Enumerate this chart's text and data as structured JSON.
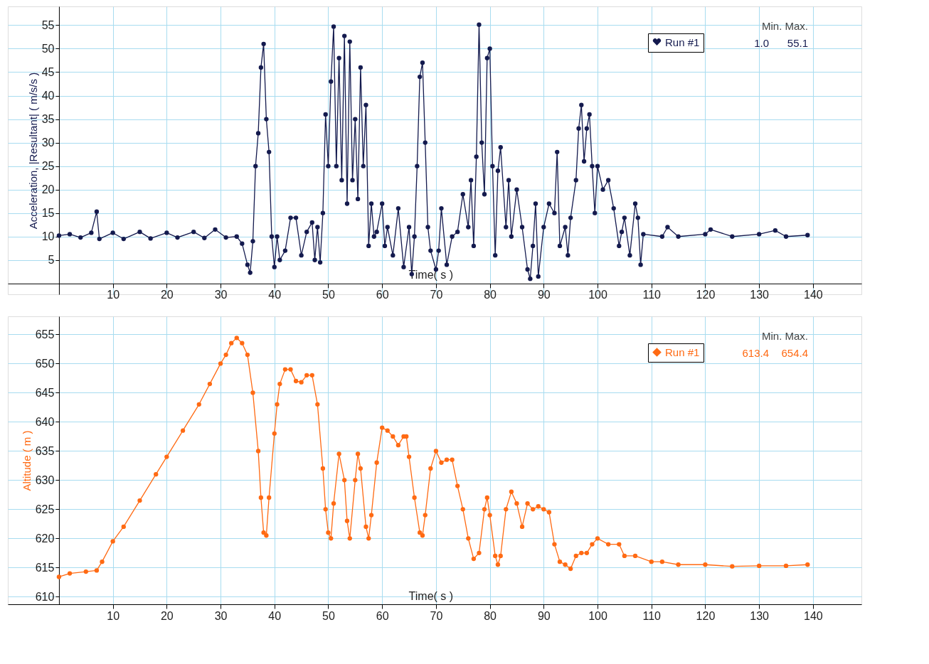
{
  "chart_data": [
    {
      "type": "line",
      "xlabel": "Time( s )",
      "ylabel": "Acceleration, |Resultant| ( m/s/s )",
      "legend_title": "Min.  Max.",
      "annotations": [
        "1.0",
        "55.1"
      ],
      "legend": "top right",
      "marker": "circle",
      "line_style": "solid",
      "grid": true,
      "xlim": [
        -9.5,
        149
      ],
      "xticks": [
        10,
        20,
        30,
        40,
        50,
        60,
        70,
        80,
        90,
        100,
        110,
        120,
        130,
        140
      ],
      "ylim": [
        -2.3,
        59
      ],
      "yticks": [
        5,
        10,
        15,
        20,
        25,
        30,
        35,
        40,
        45,
        50,
        55
      ],
      "series": [
        {
          "name": "Run #1",
          "color": "#141a4e",
          "x": [
            0,
            2,
            4,
            6,
            7,
            7.5,
            10,
            12,
            15,
            17,
            20,
            22,
            25,
            27,
            29,
            31,
            33,
            34,
            35,
            35.5,
            36,
            36.5,
            37,
            37.5,
            38,
            38.5,
            39,
            39.5,
            40,
            40.5,
            41,
            42,
            43,
            44,
            45,
            46,
            47,
            47.5,
            48,
            48.5,
            49,
            49.5,
            50,
            50.5,
            51,
            51.5,
            52,
            52.5,
            53,
            53.5,
            54,
            54.5,
            55,
            55.5,
            56,
            56.5,
            57,
            57.5,
            58,
            58.5,
            59,
            60,
            60.5,
            61,
            62,
            63,
            64,
            65,
            65.5,
            66,
            66.5,
            67,
            67.5,
            68,
            68.5,
            69,
            70,
            70.5,
            71,
            72,
            73,
            74,
            75,
            76,
            76.5,
            77,
            77.5,
            78,
            78.5,
            79,
            79.5,
            80,
            80.5,
            81,
            81.5,
            82,
            83,
            83.5,
            84,
            85,
            86,
            87,
            87.5,
            88,
            88.5,
            89,
            90,
            91,
            92,
            92.5,
            93,
            94,
            94.5,
            95,
            96,
            96.5,
            97,
            97.5,
            98,
            98.5,
            99,
            99.5,
            100,
            101,
            102,
            103,
            104,
            104.5,
            105,
            106,
            107,
            107.5,
            108,
            108.5,
            112,
            113,
            115,
            120,
            121,
            125,
            130,
            133,
            135,
            139
          ],
          "values": [
            10.2,
            10.5,
            9.8,
            10.8,
            15.3,
            9.5,
            10.8,
            9.5,
            11,
            9.6,
            10.8,
            9.8,
            11,
            9.7,
            11.5,
            9.8,
            10,
            8.5,
            4,
            2.3,
            9,
            25,
            32,
            46,
            51,
            35,
            28,
            10,
            3.5,
            10,
            5,
            7,
            14,
            14,
            6,
            11,
            13,
            5,
            12,
            4.5,
            15,
            36,
            25,
            43,
            54.7,
            25,
            48,
            22,
            52.7,
            17,
            51.5,
            22,
            35,
            18,
            46,
            25,
            38,
            8,
            17,
            10,
            11,
            17,
            8,
            12,
            6,
            16,
            3.5,
            12,
            2,
            10,
            25,
            44,
            47,
            30,
            12,
            7,
            3,
            7,
            16,
            4,
            10,
            11,
            19,
            12,
            22,
            8,
            27,
            55.1,
            30,
            19,
            48,
            50,
            25,
            6,
            24,
            29,
            12,
            22,
            10,
            20,
            12,
            3,
            1.0,
            8,
            17,
            1.5,
            12,
            17,
            15,
            28,
            8,
            12,
            6,
            14,
            22,
            33,
            38,
            26,
            33,
            36,
            25,
            15,
            25,
            20,
            22,
            16,
            8,
            11,
            14,
            6,
            17,
            14,
            4,
            10.5,
            10,
            12,
            10,
            10.5,
            11.5,
            10,
            10.5,
            11.3,
            10,
            10.3
          ]
        }
      ]
    },
    {
      "type": "line",
      "xlabel": "Time( s )",
      "ylabel": "Altitude ( m )",
      "legend_title": "Min.  Max.",
      "annotations": [
        "613.4",
        "654.4"
      ],
      "legend": "top right",
      "marker": "circle",
      "line_style": "solid",
      "grid": true,
      "xlim": [
        -9.5,
        149
      ],
      "xticks": [
        10,
        20,
        30,
        40,
        50,
        60,
        70,
        80,
        90,
        100,
        110,
        120,
        130,
        140
      ],
      "ylim": [
        608.7,
        658.1
      ],
      "yticks": [
        610,
        615,
        620,
        625,
        630,
        635,
        640,
        645,
        650,
        655
      ],
      "series": [
        {
          "name": "Run #1",
          "color": "#ff6a13",
          "x": [
            0,
            2,
            5,
            7,
            8,
            10,
            12,
            15,
            18,
            20,
            23,
            26,
            28,
            30,
            31,
            32,
            33,
            34,
            35,
            36,
            37,
            37.5,
            38,
            38.5,
            39,
            40,
            40.5,
            41,
            42,
            43,
            44,
            45,
            46,
            47,
            48,
            49,
            49.5,
            50,
            50.5,
            51,
            52,
            53,
            53.5,
            54,
            55,
            55.5,
            56,
            57,
            57.5,
            58,
            59,
            60,
            61,
            62,
            63,
            64,
            64.5,
            65,
            66,
            67,
            67.5,
            68,
            69,
            70,
            71,
            72,
            73,
            74,
            75,
            76,
            77,
            78,
            79,
            79.5,
            80,
            81,
            81.5,
            82,
            83,
            84,
            85,
            86,
            87,
            88,
            89,
            90,
            91,
            92,
            93,
            94,
            95,
            96,
            97,
            98,
            99,
            100,
            102,
            104,
            105,
            107,
            110,
            112,
            115,
            120,
            125,
            130,
            135,
            139
          ],
          "values": [
            613.4,
            614,
            614.3,
            614.5,
            616,
            619.5,
            622,
            626.5,
            631,
            634,
            638.5,
            643,
            646.5,
            650,
            651.5,
            653.5,
            654.4,
            653.5,
            651.5,
            645,
            635,
            627,
            621,
            620.5,
            627,
            638,
            643,
            646.5,
            649,
            649,
            647,
            646.8,
            648,
            648,
            643,
            632,
            625,
            621,
            620,
            626,
            634.5,
            630,
            623,
            620,
            630,
            634.5,
            632,
            622,
            620,
            624,
            633,
            639,
            638.5,
            637.5,
            636,
            637.5,
            637.5,
            634,
            627,
            621,
            620.5,
            624,
            632,
            635,
            633,
            633.5,
            633.5,
            629,
            625,
            620,
            616.5,
            617.5,
            625,
            627,
            624,
            617,
            615.5,
            617,
            625,
            628,
            626,
            622,
            626,
            625,
            625.5,
            625,
            624.5,
            619,
            616,
            615.5,
            614.8,
            617,
            617.5,
            617.5,
            619,
            620,
            619,
            619,
            617,
            617,
            616,
            616,
            615.5,
            615.5,
            615.2,
            615.3,
            615.3,
            615.5
          ]
        }
      ]
    }
  ]
}
